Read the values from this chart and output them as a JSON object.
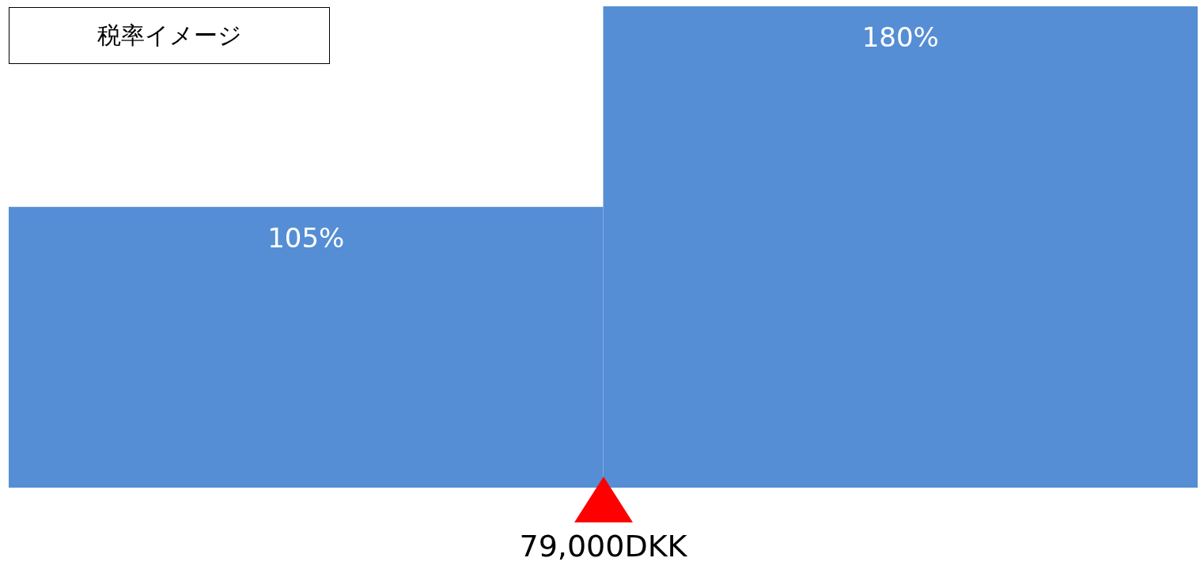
{
  "chart_data": {
    "type": "bar",
    "title": "税率イメージ",
    "categories": [
      null,
      null
    ],
    "values": [
      105,
      180
    ],
    "color": "#558ed5",
    "data_labels": true,
    "value_labels": [
      "105%",
      "180%"
    ],
    "annotations": [
      "79,000DKK"
    ],
    "grid": false
  }
}
